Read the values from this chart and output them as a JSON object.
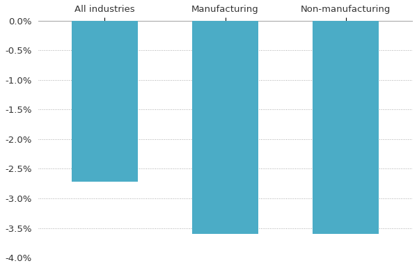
{
  "categories": [
    "All industries",
    "Manufacturing",
    "Non-manufacturing"
  ],
  "values": [
    -0.0272,
    -0.036,
    -0.036
  ],
  "bar_color": "#4BACC6",
  "ylim": [
    -0.04,
    0.0
  ],
  "yticks": [
    0.0,
    -0.005,
    -0.01,
    -0.015,
    -0.02,
    -0.025,
    -0.03,
    -0.035,
    -0.04
  ],
  "ytick_labels": [
    "0.0%",
    "-0.5%",
    "-1.0%",
    "-1.5%",
    "-2.0%",
    "-2.5%",
    "-3.0%",
    "-3.5%",
    "-4.0%"
  ],
  "background_color": "#ffffff",
  "bar_width": 0.55,
  "figsize": [
    5.99,
    3.85
  ],
  "dpi": 100,
  "label_fontsize": 9.5,
  "tick_fontsize": 9.5,
  "grid_color": "#aaaaaa",
  "spine_color": "#aaaaaa"
}
